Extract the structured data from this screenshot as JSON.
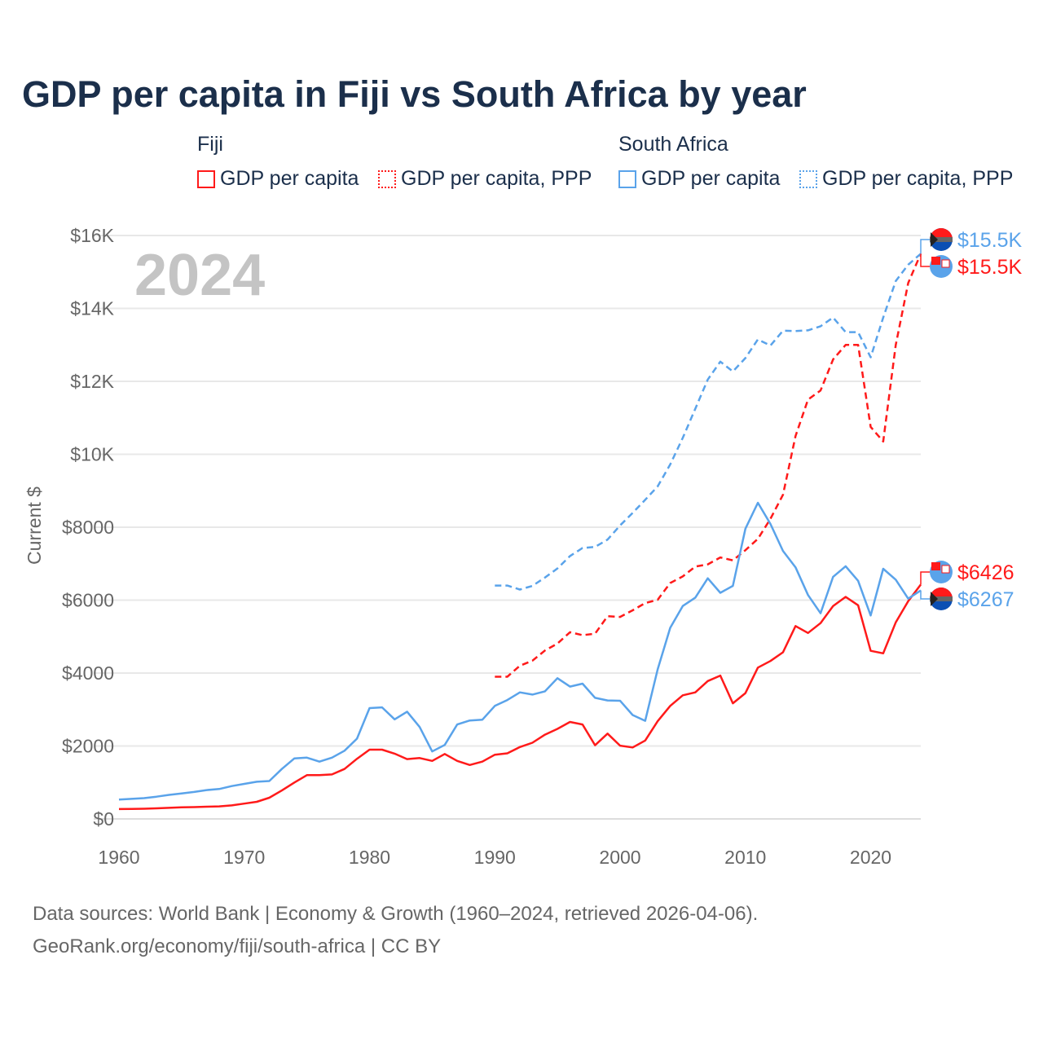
{
  "chart_data": {
    "type": "line",
    "title": "GDP per capita in Fiji vs South Africa by year",
    "ylabel": "Current $",
    "xlabel": "",
    "year_watermark": "2024",
    "xlim": [
      1960,
      2024
    ],
    "ylim": [
      0,
      16000
    ],
    "x_ticks": [
      1960,
      1970,
      1980,
      1990,
      2000,
      2010,
      2020
    ],
    "x_tick_labels": [
      "1960",
      "1970",
      "1980",
      "1990",
      "2000",
      "2010",
      "2020"
    ],
    "y_ticks": [
      0,
      2000,
      4000,
      6000,
      8000,
      10000,
      12000,
      14000,
      16000
    ],
    "y_tick_labels": [
      "$0",
      "$2000",
      "$4000",
      "$6000",
      "$8000",
      "$10K",
      "$12K",
      "$14K",
      "$16K"
    ],
    "grid": true,
    "legend": {
      "placement": "top",
      "groups": [
        {
          "name": "Fiji",
          "items": [
            "GDP per capita",
            "GDP per capita, PPP"
          ]
        },
        {
          "name": "South Africa",
          "items": [
            "GDP per capita",
            "GDP per capita, PPP"
          ]
        }
      ]
    },
    "series": [
      {
        "name": "Fiji GDP per capita",
        "color": "#ff1a1a",
        "dashed": false,
        "start": 1960,
        "values": [
          270,
          275,
          280,
          290,
          305,
          320,
          325,
          335,
          345,
          370,
          420,
          470,
          580,
          780,
          1000,
          1200,
          1200,
          1220,
          1370,
          1650,
          1900,
          1900,
          1790,
          1640,
          1670,
          1590,
          1780,
          1590,
          1480,
          1570,
          1760,
          1800,
          1970,
          2090,
          2310,
          2470,
          2660,
          2590,
          2020,
          2340,
          2010,
          1960,
          2150,
          2680,
          3100,
          3390,
          3470,
          3780,
          3930,
          3170,
          3450,
          4150,
          4330,
          4570,
          5290,
          5100,
          5370,
          5840,
          6090,
          5860,
          4610,
          4540,
          5390,
          5970,
          6426
        ],
        "end_label": "$6426"
      },
      {
        "name": "Fiji GDP per capita, PPP",
        "color": "#ff1a1a",
        "dashed": true,
        "start": 1990,
        "values": [
          3900,
          3900,
          4200,
          4340,
          4620,
          4810,
          5120,
          5040,
          5080,
          5560,
          5540,
          5720,
          5920,
          6010,
          6470,
          6650,
          6920,
          6980,
          7170,
          7090,
          7370,
          7680,
          8230,
          8890,
          10500,
          11500,
          11750,
          12600,
          13000,
          13000,
          10750,
          10350,
          13000,
          14700,
          15500
        ],
        "end_label": "$15.5K"
      },
      {
        "name": "South Africa GDP per capita",
        "color": "#5aa3ea",
        "dashed": false,
        "start": 1960,
        "values": [
          530,
          550,
          570,
          610,
          660,
          700,
          740,
          790,
          820,
          900,
          960,
          1020,
          1040,
          1370,
          1660,
          1680,
          1570,
          1680,
          1870,
          2200,
          3040,
          3060,
          2730,
          2940,
          2520,
          1850,
          2030,
          2590,
          2700,
          2720,
          3100,
          3260,
          3470,
          3410,
          3500,
          3860,
          3630,
          3710,
          3320,
          3250,
          3240,
          2850,
          2690,
          4100,
          5240,
          5840,
          6070,
          6600,
          6200,
          6390,
          7960,
          8670,
          8090,
          7350,
          6900,
          6140,
          5640,
          6640,
          6930,
          6530,
          5580,
          6860,
          6560,
          6040,
          6267
        ],
        "end_label": "$6267"
      },
      {
        "name": "South Africa GDP per capita, PPP",
        "color": "#5aa3ea",
        "dashed": true,
        "start": 1990,
        "values": [
          6400,
          6400,
          6290,
          6390,
          6620,
          6870,
          7210,
          7430,
          7460,
          7660,
          8050,
          8390,
          8750,
          9120,
          9720,
          10450,
          11250,
          12050,
          12540,
          12270,
          12640,
          13150,
          12980,
          13390,
          13380,
          13400,
          13510,
          13750,
          13350,
          13350,
          12660,
          13750,
          14750,
          15200,
          15500
        ],
        "end_label": "$15.5K"
      }
    ]
  },
  "footer": {
    "line1": "Data sources: World Bank | Economy & Growth (1960–2024, retrieved 2026-04-06).",
    "line2": "GeoRank.org/economy/fiji/south-africa | CC BY"
  }
}
